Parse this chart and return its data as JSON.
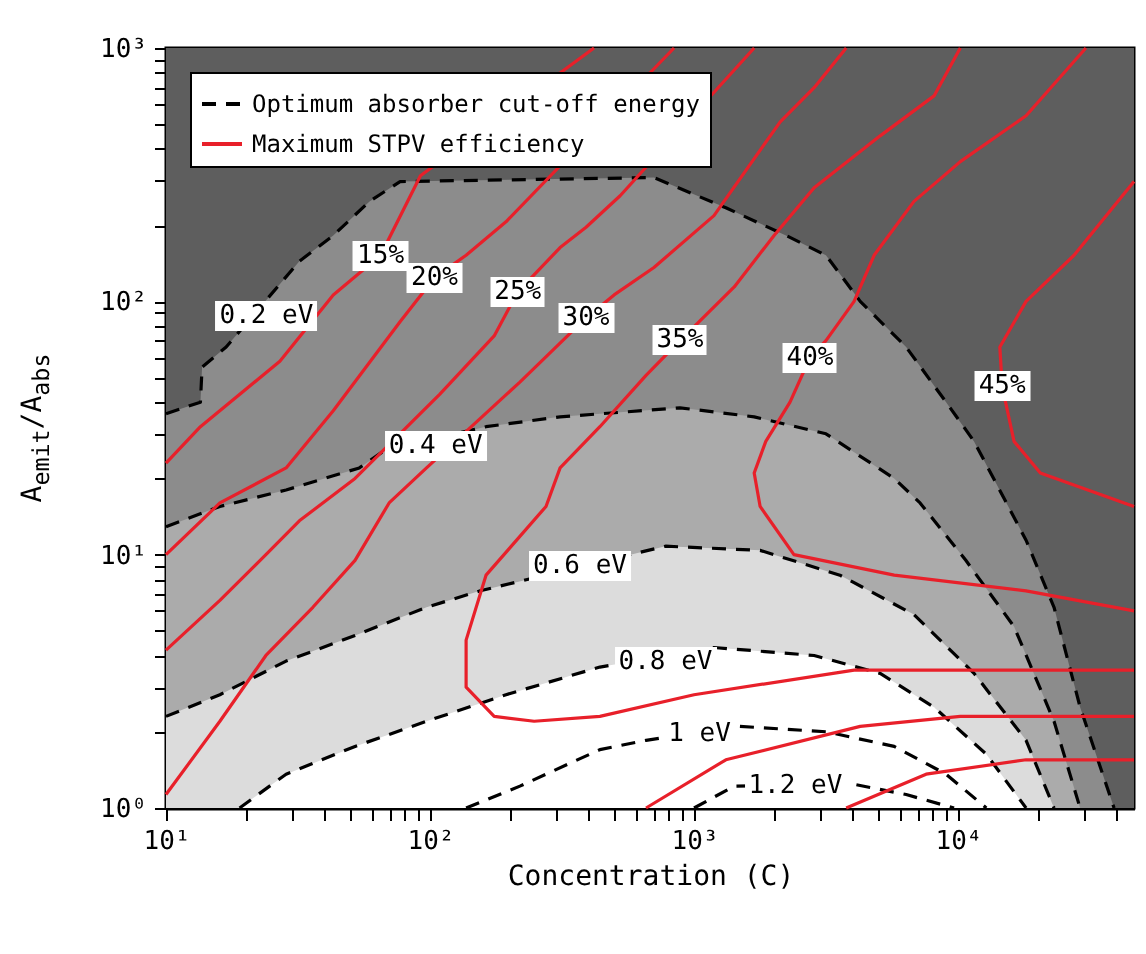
{
  "chart_data": {
    "type": "line",
    "xlabel": "Concentration (C)",
    "ylabel": "A$_{emit}$/A$_{abs}$",
    "log": "xy",
    "grid": false,
    "legend": "top left",
    "xlim": [
      10,
      46400
    ],
    "ylim": [
      1,
      1000
    ],
    "xticks": [
      {
        "value": 10,
        "label": "10¹"
      },
      {
        "value": 20,
        "label": null
      },
      {
        "value": 30,
        "label": null
      },
      {
        "value": 40,
        "label": null
      },
      {
        "value": 50,
        "label": null
      },
      {
        "value": 60,
        "label": null
      },
      {
        "value": 70,
        "label": null
      },
      {
        "value": 80,
        "label": null
      },
      {
        "value": 90,
        "label": null
      },
      {
        "value": 100,
        "label": "10²"
      },
      {
        "value": 200,
        "label": null
      },
      {
        "value": 300,
        "label": null
      },
      {
        "value": 400,
        "label": null
      },
      {
        "value": 500,
        "label": null
      },
      {
        "value": 600,
        "label": null
      },
      {
        "value": 700,
        "label": null
      },
      {
        "value": 800,
        "label": null
      },
      {
        "value": 900,
        "label": null
      },
      {
        "value": 1000,
        "label": "10³"
      },
      {
        "value": 2000,
        "label": null
      },
      {
        "value": 3000,
        "label": null
      },
      {
        "value": 4000,
        "label": null
      },
      {
        "value": 5000,
        "label": null
      },
      {
        "value": 6000,
        "label": null
      },
      {
        "value": 7000,
        "label": null
      },
      {
        "value": 8000,
        "label": null
      },
      {
        "value": 9000,
        "label": null
      },
      {
        "value": 10000,
        "label": "10⁴"
      },
      {
        "value": 20000,
        "label": null
      },
      {
        "value": 30000,
        "label": null
      },
      {
        "value": 40000,
        "label": null
      }
    ],
    "yticks": [
      {
        "value": 1,
        "label": "10⁰"
      },
      {
        "value": 2,
        "label": null
      },
      {
        "value": 3,
        "label": null
      },
      {
        "value": 4,
        "label": null
      },
      {
        "value": 5,
        "label": null
      },
      {
        "value": 6,
        "label": null
      },
      {
        "value": 7,
        "label": null
      },
      {
        "value": 8,
        "label": null
      },
      {
        "value": 9,
        "label": null
      },
      {
        "value": 10,
        "label": "10¹"
      },
      {
        "value": 20,
        "label": null
      },
      {
        "value": 30,
        "label": null
      },
      {
        "value": 40,
        "label": null
      },
      {
        "value": 50,
        "label": null
      },
      {
        "value": 60,
        "label": null
      },
      {
        "value": 70,
        "label": null
      },
      {
        "value": 80,
        "label": null
      },
      {
        "value": 90,
        "label": null
      },
      {
        "value": 100,
        "label": "10²"
      },
      {
        "value": 200,
        "label": null
      },
      {
        "value": 300,
        "label": null
      },
      {
        "value": 400,
        "label": null
      },
      {
        "value": 500,
        "label": null
      },
      {
        "value": 600,
        "label": null
      },
      {
        "value": 700,
        "label": null
      },
      {
        "value": 800,
        "label": null
      },
      {
        "value": 900,
        "label": null
      },
      {
        "value": 1000,
        "label": "10³"
      }
    ],
    "bands": [
      {
        "axis": "y",
        "from": 1,
        "to": 1000,
        "color": "#5e5e5e"
      }
    ],
    "series": [
      {
        "type": "area",
        "line_style": "dashed",
        "color": "#8c8c8c",
        "x": [
          10,
          13.5,
          13.7,
          16.9,
          32,
          43,
          59,
          77,
          705,
          1320,
          2230,
          3160,
          4260,
          6360,
          9010,
          11500,
          18100,
          23100,
          29000,
          39000
        ],
        "values": [
          36,
          40,
          55,
          66,
          144,
          182,
          248,
          297,
          308,
          234,
          182,
          152,
          100,
          66,
          40,
          28,
          11.4,
          6.2,
          2.5,
          1
        ]
      },
      {
        "type": "area",
        "line_style": "dashed",
        "color": "#ababab",
        "x": [
          10,
          16,
          28.5,
          54,
          68,
          163,
          311,
          885,
          1690,
          3160,
          5730,
          7180,
          10700,
          16300,
          23100,
          29000
        ],
        "values": [
          12.9,
          15.5,
          18,
          22,
          26,
          32,
          35,
          38,
          35,
          30,
          20,
          16,
          9.5,
          5.2,
          2.2,
          1
        ]
      },
      {
        "type": "area",
        "line_style": "dashed",
        "color": "#dcdcdc",
        "x": [
          10,
          16,
          28.5,
          52,
          97,
          155,
          780,
          1780,
          3570,
          6810,
          11500,
          18100,
          23100
        ],
        "values": [
          2.3,
          2.8,
          3.8,
          4.8,
          6.2,
          7.2,
          10.8,
          10.4,
          8.3,
          5.8,
          3.4,
          1.85,
          1
        ]
      },
      {
        "type": "area",
        "line_style": "dashed",
        "color": "#ffffff",
        "x": [
          19,
          28.5,
          52,
          97,
          194,
          440,
          1190,
          2850,
          5070,
          8110,
          12800,
          18100
        ],
        "values": [
          1,
          1.36,
          1.75,
          2.2,
          2.8,
          3.6,
          4.3,
          4.0,
          3.4,
          2.5,
          1.63,
          1
        ]
      },
      {
        "name": "Optimum absorber cut-off energy",
        "type": "line",
        "line_style": "dashed",
        "color": "#000000",
        "x": [
          137,
          219,
          440,
          658,
          1490,
          3160,
          5730,
          9010,
          12800
        ],
        "values": [
          1,
          1.22,
          1.7,
          1.85,
          2.1,
          2.0,
          1.75,
          1.36,
          1
        ]
      },
      {
        "type": "line",
        "line_style": "dashed",
        "color": "#000000",
        "x": [
          1000,
          1420,
          4040,
          6360,
          9660
        ],
        "values": [
          1,
          1.22,
          1.24,
          1.13,
          1
        ]
      },
      {
        "name": "Maximum STPV efficiency",
        "type": "line",
        "line_style": "solid",
        "color": "#e8202a",
        "x": [
          10,
          13.5,
          27,
          43,
          65,
          92,
          418
        ],
        "values": [
          23,
          32,
          58,
          106,
          152,
          313,
          1000
        ]
      },
      {
        "type": "line",
        "line_style": "solid",
        "color": "#e8202a",
        "x": [
          10,
          16,
          28.5,
          43,
          77,
          104,
          137,
          194,
          840
        ],
        "values": [
          10,
          16,
          22,
          37,
          83,
          124,
          152,
          206,
          1000
        ]
      },
      {
        "type": "line",
        "line_style": "solid",
        "color": "#e8202a",
        "x": [
          10,
          16,
          23.9,
          32,
          52,
          109,
          175,
          215,
          311,
          390,
          525,
          1690
        ],
        "values": [
          4.2,
          6.6,
          10,
          13.6,
          20,
          43,
          73,
          109,
          163,
          196,
          261,
          1000
        ]
      },
      {
        "type": "line",
        "line_style": "solid",
        "color": "#e8202a",
        "x": [
          10,
          16,
          23.9,
          36,
          52,
          70,
          97,
          219,
          390,
          498,
          705,
          1190,
          2120,
          2850,
          3770
        ],
        "values": [
          1.13,
          2.2,
          4.0,
          6.2,
          9.5,
          16,
          22,
          48,
          86,
          106,
          136,
          218,
          511,
          697,
          1000
        ]
      },
      {
        "type": "line",
        "line_style": "solid",
        "color": "#e8202a",
        "x": [
          10200,
          8110,
          5070,
          2850,
          2010,
          1420,
          885,
          658,
          440,
          311,
          275,
          163,
          137,
          137,
          175,
          248,
          440,
          1000,
          4040,
          46400
        ],
        "values": [
          1000,
          647,
          450,
          281,
          182,
          114,
          70,
          51,
          32,
          22,
          15.5,
          8.3,
          4.6,
          3.0,
          2.3,
          2.2,
          2.3,
          2.8,
          3.5,
          3.5
        ]
      },
      {
        "type": "line",
        "line_style": "solid",
        "color": "#e8202a",
        "x": [
          30500,
          18100,
          10200,
          6810,
          4810,
          4040,
          3160,
          2750,
          2310,
          1870,
          1690,
          1780,
          2390,
          5730,
          18100,
          46400
        ],
        "values": [
          1000,
          540,
          356,
          248,
          152,
          100,
          70,
          60,
          40,
          28,
          21,
          15.5,
          10,
          8.3,
          7.2,
          6.0
        ]
      },
      {
        "type": "line",
        "line_style": "solid",
        "color": "#e8202a",
        "x": [
          46400,
          27500,
          18100,
          14400,
          14700,
          16300,
          20500,
          46400
        ],
        "values": [
          297,
          152,
          100,
          66,
          46,
          28,
          21,
          15.5
        ]
      },
      {
        "type": "line",
        "line_style": "solid",
        "color": "#e8202a",
        "x": [
          658,
          1320,
          4260,
          10200,
          46400
        ],
        "values": [
          1,
          1.55,
          2.1,
          2.3,
          2.3
        ]
      },
      {
        "type": "line",
        "line_style": "solid",
        "color": "#e8202a",
        "x": [
          3770,
          7570,
          18100,
          46400
        ],
        "values": [
          1,
          1.36,
          1.55,
          1.55
        ]
      }
    ],
    "annotations": [
      {
        "text": "0.2 eV",
        "x": 24,
        "y": 88
      },
      {
        "text": "0.4 eV",
        "x": 105,
        "y": 27
      },
      {
        "text": "0.6 eV",
        "x": 370,
        "y": 9.0
      },
      {
        "text": "0.8 eV",
        "x": 780,
        "y": 3.8
      },
      {
        "text": "1 eV",
        "x": 1050,
        "y": 1.95
      },
      {
        "text": "1.2 eV",
        "x": 2420,
        "y": 1.22
      },
      {
        "text": "15%",
        "x": 65,
        "y": 152
      },
      {
        "text": "20%",
        "x": 104,
        "y": 124
      },
      {
        "text": "25%",
        "x": 215,
        "y": 109
      },
      {
        "text": "30%",
        "x": 390,
        "y": 86
      },
      {
        "text": "35%",
        "x": 885,
        "y": 70
      },
      {
        "text": "40%",
        "x": 2750,
        "y": 60
      },
      {
        "text": "45%",
        "x": 14700,
        "y": 46
      }
    ]
  }
}
